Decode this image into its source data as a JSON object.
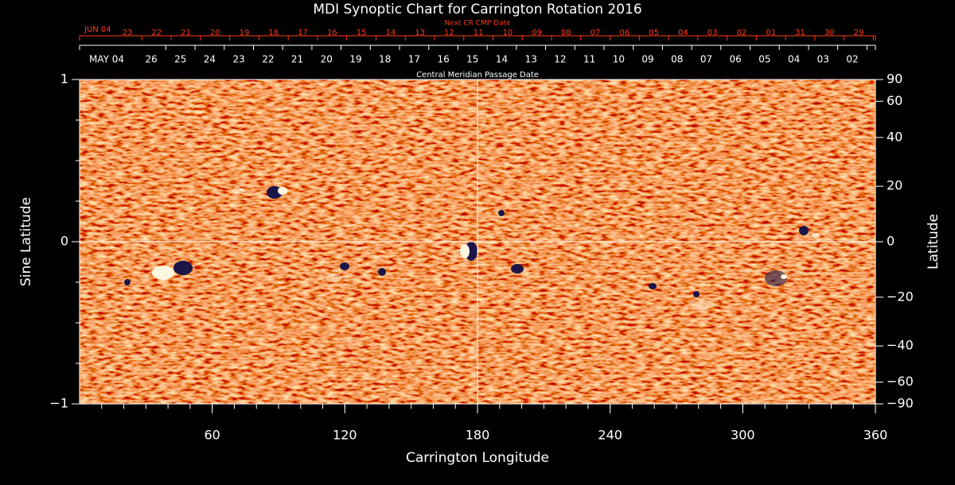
{
  "chart_data": {
    "type": "synoptic-map",
    "title": "MDI Synoptic Chart for Carrington Rotation 2016",
    "xlabel": "Carrington Longitude",
    "ylabel": "Sine Latitude",
    "y2label": "Latitude",
    "xlim": [
      0,
      360
    ],
    "xticks": [
      60,
      120,
      180,
      240,
      300,
      360
    ],
    "ylim": [
      -1,
      1
    ],
    "yticks": [
      {
        "value": -1,
        "label": "−1"
      },
      0,
      1
    ],
    "y2lim": [
      -90,
      90
    ],
    "y2scale": "sine",
    "y2ticks": [
      90,
      60,
      40,
      20,
      0,
      {
        "value": -20,
        "label": "−20"
      },
      {
        "value": -40,
        "label": "−40"
      },
      {
        "value": -60,
        "label": "−60"
      },
      {
        "value": -90,
        "label": "−90"
      }
    ],
    "crosshair": {
      "x": 180,
      "y": 0
    },
    "top_axis": {
      "label": "Next CR CMP Date",
      "color": "#ff3a1a",
      "first": "JUN 04",
      "dates": [
        "23",
        "22",
        "21",
        "20",
        "19",
        "18",
        "17",
        "16",
        "15",
        "14",
        "13",
        "12",
        "11",
        "10",
        "09",
        "08",
        "07",
        "06",
        "05",
        "04",
        "03",
        "02",
        "01",
        "31",
        "30",
        "29"
      ]
    },
    "date_axis": {
      "label": "Central Meridian Passage Date",
      "color": "#ffffff",
      "first": "MAY 04",
      "dates": [
        "26",
        "25",
        "24",
        "23",
        "22",
        "21",
        "20",
        "19",
        "18",
        "17",
        "16",
        "15",
        "14",
        "13",
        "12",
        "11",
        "10",
        "09",
        "08",
        "07",
        "06",
        "05",
        "04",
        "03",
        "02"
      ]
    }
  }
}
